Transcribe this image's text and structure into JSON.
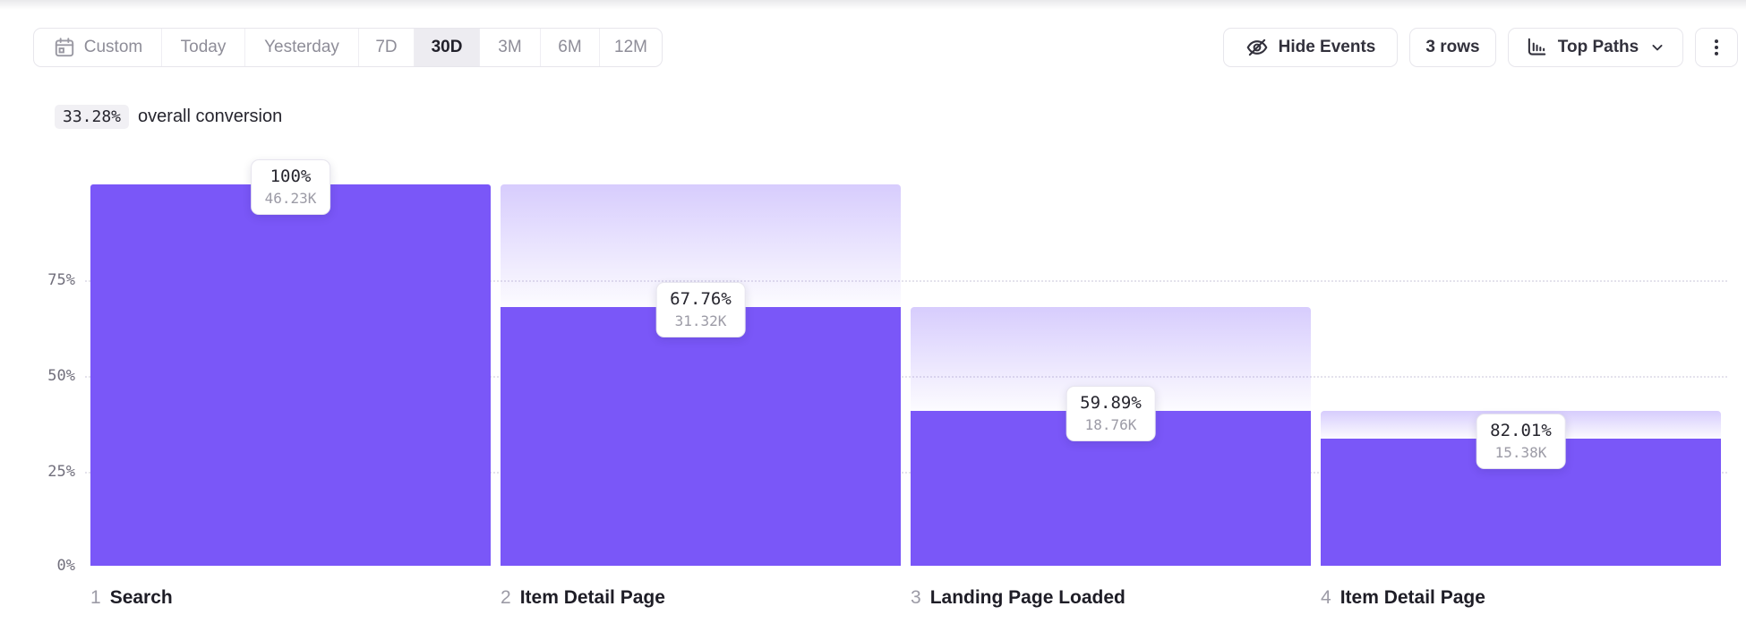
{
  "toolbar": {
    "date_picker": {
      "items": [
        {
          "label": "Custom"
        },
        {
          "label": "Today"
        },
        {
          "label": "Yesterday"
        },
        {
          "label": "7D"
        },
        {
          "label": "30D"
        },
        {
          "label": "3M"
        },
        {
          "label": "6M"
        },
        {
          "label": "12M"
        }
      ],
      "selected": "30D"
    },
    "hide_events_label": "Hide Events",
    "rows_label": "3 rows",
    "view_label": "Top Paths"
  },
  "summary": {
    "value": "33.28%",
    "label": "overall conversion"
  },
  "chart_data": {
    "type": "bar",
    "subtype": "funnel",
    "title": "33.28% overall conversion",
    "overall_conversion_pct": 33.28,
    "y_axis": {
      "ticks": [
        "75%",
        "50%",
        "25%",
        "0%"
      ],
      "range": [
        0,
        100
      ],
      "gridlines": "dotted at 25/50/75"
    },
    "steps": [
      {
        "index": 1,
        "name": "Search",
        "conversion_label": "100%",
        "count_label": "46.23K",
        "count": 46230,
        "step_conversion_pct": 100,
        "absolute_pct": 100
      },
      {
        "index": 2,
        "name": "Item Detail Page",
        "conversion_label": "67.76%",
        "count_label": "31.32K",
        "count": 31320,
        "step_conversion_pct": 67.76,
        "absolute_pct": 67.76
      },
      {
        "index": 3,
        "name": "Landing Page Loaded",
        "conversion_label": "59.89%",
        "count_label": "18.76K",
        "count": 18760,
        "step_conversion_pct": 59.89,
        "absolute_pct": 40.58
      },
      {
        "index": 4,
        "name": "Item Detail Page",
        "conversion_label": "82.01%",
        "count_label": "15.38K",
        "count": 15380,
        "step_conversion_pct": 82.01,
        "absolute_pct": 33.27
      }
    ],
    "colors": {
      "bar": "#7A57F8",
      "fade_top": "rgba(122,87,248,0.30)",
      "accent_text": "#26252E"
    }
  }
}
